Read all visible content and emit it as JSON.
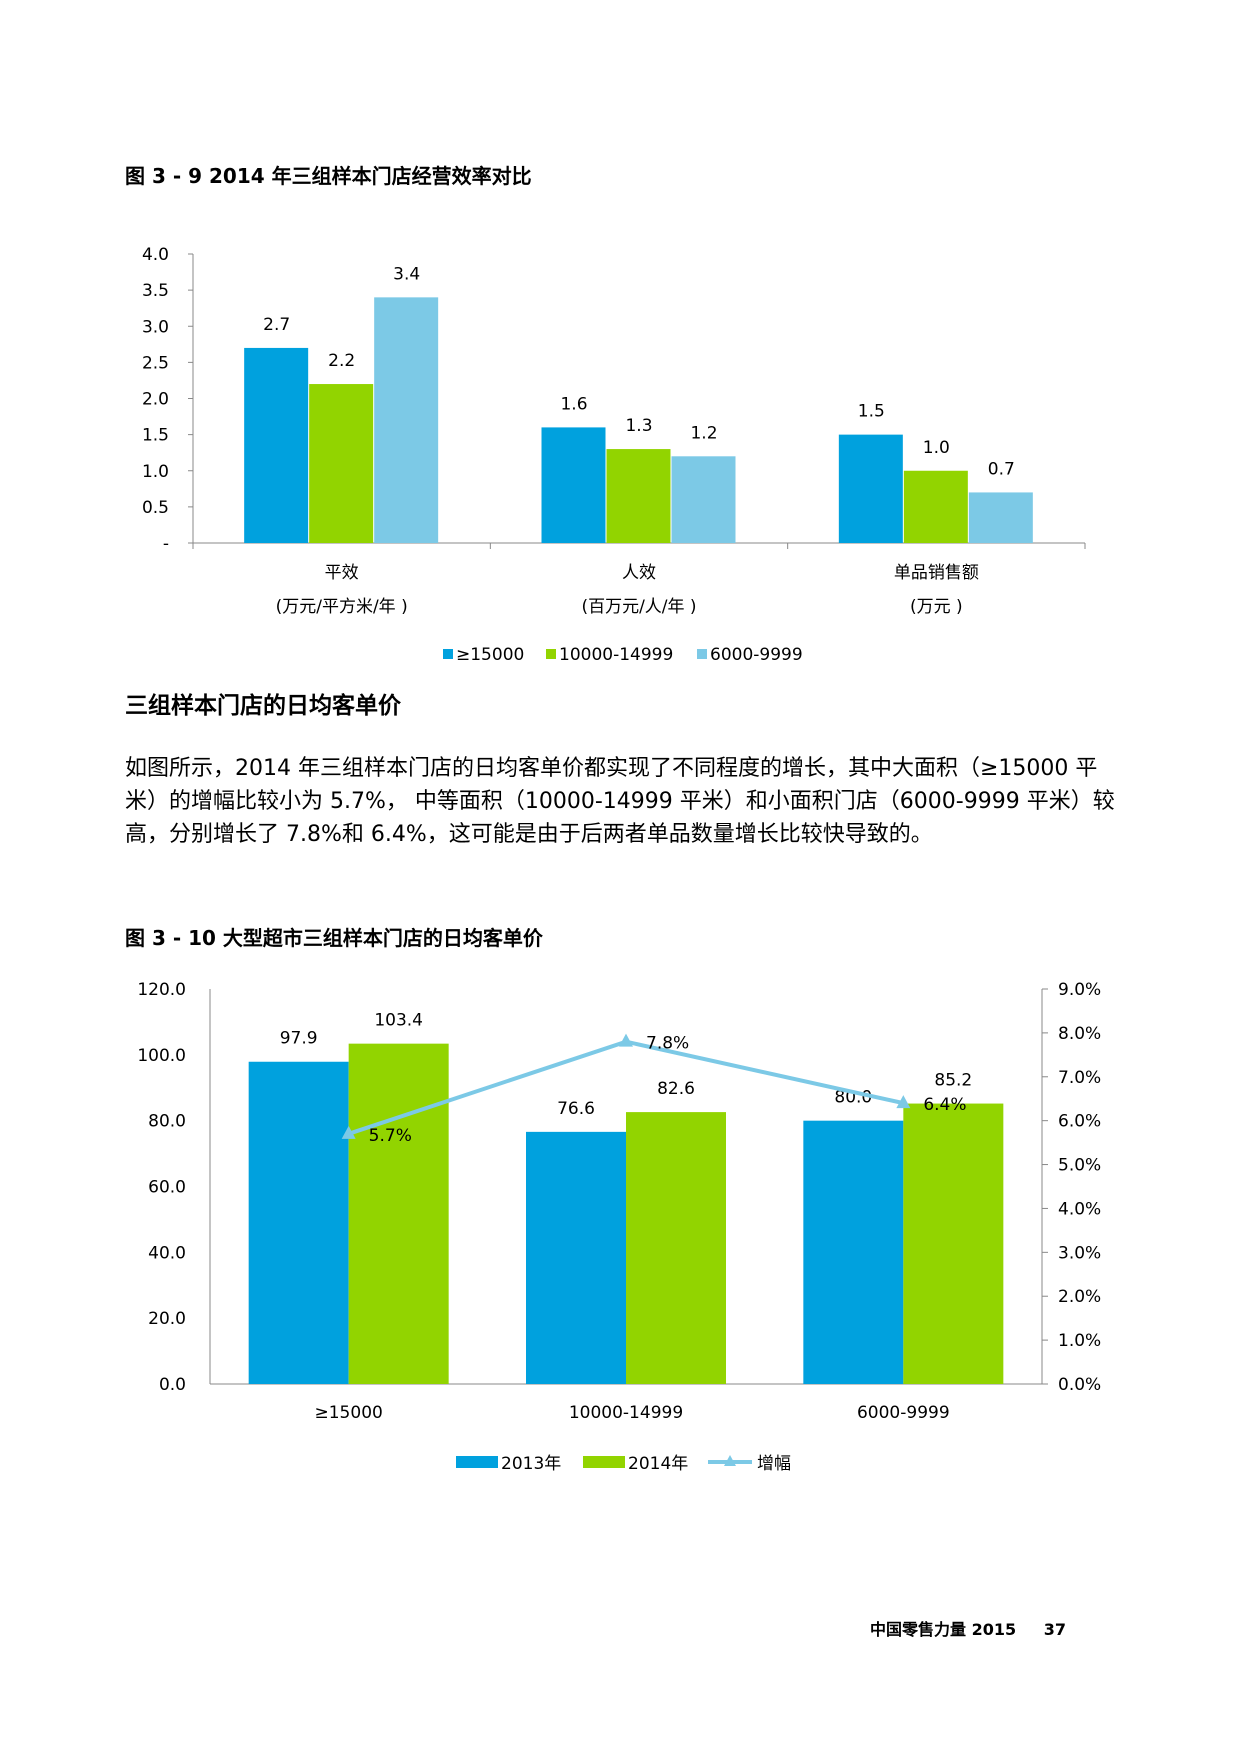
{
  "figure1": {
    "title": "图 3 - 9 2014 年三组样本门店经营效率对比",
    "chart_data": {
      "type": "bar",
      "categories": [
        "平效",
        "人效",
        "单品销售额"
      ],
      "category_units": [
        "(万元/平方米/年 )",
        "(百万元/人/年 )",
        "(万元 )"
      ],
      "series": [
        {
          "name": "≥15000",
          "values": [
            2.7,
            1.6,
            1.5
          ],
          "color": "#00A1DE"
        },
        {
          "name": "10000-14999",
          "values": [
            2.2,
            1.3,
            1.0
          ],
          "color": "#92D400"
        },
        {
          "name": "6000-9999",
          "values": [
            3.4,
            1.2,
            0.7
          ],
          "color": "#7CC9E6"
        }
      ],
      "ylim": [
        0,
        4.0
      ],
      "yticks": [
        "-",
        "0.5",
        "1.0",
        "1.5",
        "2.0",
        "2.5",
        "3.0",
        "3.5",
        "4.0"
      ],
      "data_labels": [
        [
          "2.7",
          "1.6",
          "1.5"
        ],
        [
          "2.2",
          "1.3",
          "1.0"
        ],
        [
          "3.4",
          "1.2",
          "0.7"
        ]
      ],
      "legend_position": "bottom",
      "grid": false
    }
  },
  "section": {
    "heading": "三组样本门店的日均客单价",
    "paragraph": "如图所示，2014 年三组样本门店的日均客单价都实现了不同程度的增长，其中大面积（≥15000 平米）的增幅比较小为 5.7%， 中等面积（10000-14999 平米）和小面积门店（6000-9999 平米）较高，分别增长了 7.8%和 6.4%，这可能是由于后两者单品数量增长比较快导致的。"
  },
  "figure2": {
    "title": "图 3 - 10 大型超市三组样本门店的日均客单价",
    "chart_data": {
      "type": "bar",
      "categories": [
        "≥15000",
        "10000-14999",
        "6000-9999"
      ],
      "series": [
        {
          "name": "2013年",
          "values": [
            97.9,
            76.6,
            80.0
          ],
          "color": "#00A1DE",
          "kind": "bar"
        },
        {
          "name": "2014年",
          "values": [
            103.4,
            82.6,
            85.2
          ],
          "color": "#92D400",
          "kind": "bar"
        },
        {
          "name": "增幅",
          "values": [
            5.7,
            7.8,
            6.4
          ],
          "color": "#7CC9E6",
          "kind": "line",
          "axis": "right"
        }
      ],
      "bar_labels": [
        [
          "97.9",
          "76.6",
          "80.0"
        ],
        [
          "103.4",
          "82.6",
          "85.2"
        ]
      ],
      "line_labels": [
        "5.7%",
        "7.8%",
        "6.4%"
      ],
      "ylim": [
        0,
        120.0
      ],
      "yticks": [
        "0.0",
        "20.0",
        "40.0",
        "60.0",
        "80.0",
        "100.0",
        "120.0"
      ],
      "y2lim": [
        0,
        9.0
      ],
      "y2ticks": [
        "0.0%",
        "1.0%",
        "2.0%",
        "3.0%",
        "4.0%",
        "5.0%",
        "6.0%",
        "7.0%",
        "8.0%",
        "9.0%"
      ],
      "legend_position": "bottom",
      "grid": false
    }
  },
  "footer": {
    "publication": "中国零售力量 2015",
    "page_number": "37"
  }
}
